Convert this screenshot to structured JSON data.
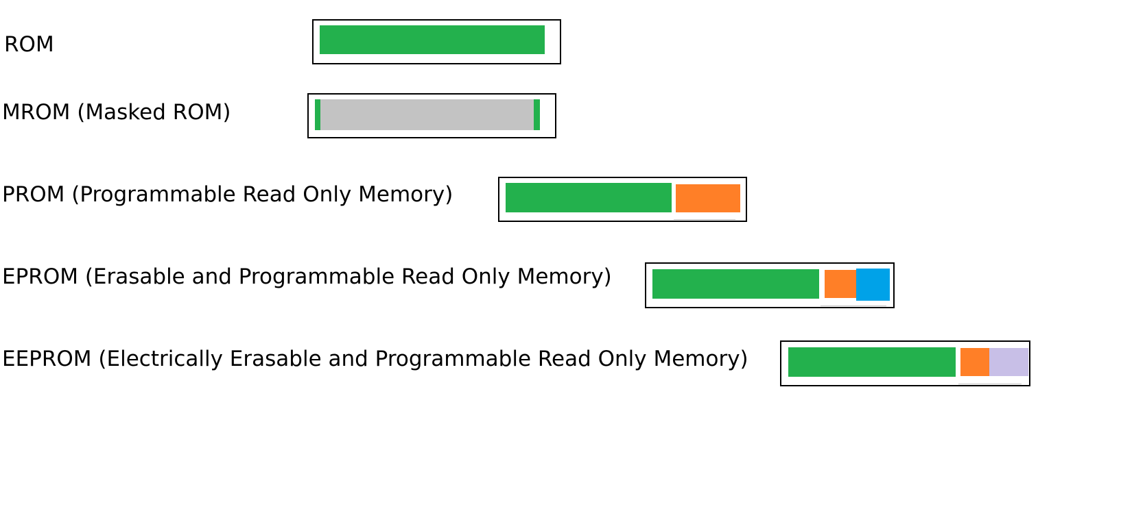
{
  "rows": [
    {
      "label": "ROM"
    },
    {
      "label": "MROM (Masked ROM)"
    },
    {
      "label": "PROM (Programmable Read Only Memory)"
    },
    {
      "label": "EPROM (Erasable and Programmable Read Only Memory)"
    },
    {
      "label": "EEPROM (Electrically Erasable and Programmable Read Only Memory)"
    }
  ],
  "colors": {
    "green": "#23b14d",
    "gray": "#c3c3c3",
    "orange": "#ff7f27",
    "blue": "#00a2e8",
    "lavender": "#c8bfe7",
    "border": "#000000"
  }
}
